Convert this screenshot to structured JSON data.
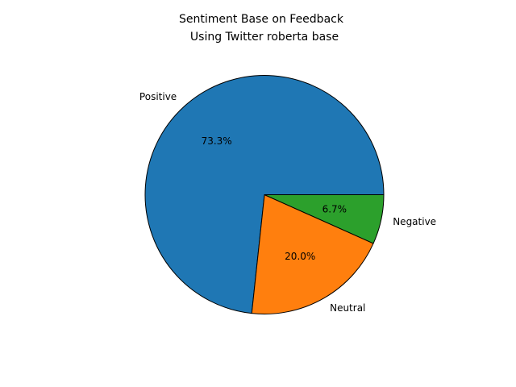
{
  "chart_data": {
    "type": "pie",
    "title_lines": [
      "Sentiment Base on Feedback",
      "Using Twitter roberta base"
    ],
    "categories": [
      "Positive",
      "Neutral",
      "Negative"
    ],
    "values": [
      73.3,
      20.0,
      6.7
    ],
    "value_labels": [
      "73.3%",
      "20.0%",
      "6.7%"
    ],
    "colors": [
      "#1f77b4",
      "#ff7f0e",
      "#2ca02c"
    ],
    "edge_color": "#000000",
    "start_angle_deg": 0,
    "direction": "counterclockwise",
    "legend": "none"
  }
}
